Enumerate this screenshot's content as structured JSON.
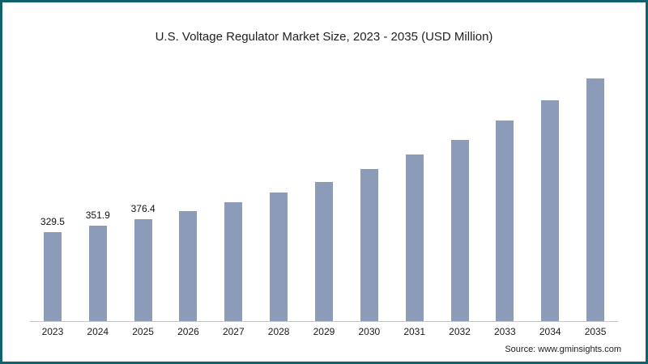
{
  "title": "U.S. Voltage Regulator Market Size, 2023 - 2035 (USD Million)",
  "source": "Source: www.gminsights.com",
  "colors": {
    "bar": "#8C9CB8",
    "border": "#11616b",
    "axis": "#c8c8c8"
  },
  "chart_data": {
    "type": "bar",
    "title": "U.S. Voltage Regulator Market Size, 2023 - 2035 (USD Million)",
    "categories": [
      "2023",
      "2024",
      "2025",
      "2026",
      "2027",
      "2028",
      "2029",
      "2030",
      "2031",
      "2032",
      "2033",
      "2034",
      "2035"
    ],
    "values": [
      329.5,
      351.9,
      376.4,
      405,
      440,
      475,
      515,
      560,
      615,
      670,
      740,
      815,
      895
    ],
    "data_labels": [
      "329.5",
      "351.9",
      "376.4",
      "",
      "",
      "",
      "",
      "",
      "",
      "",
      "",
      "",
      ""
    ],
    "xlabel": "",
    "ylabel": "",
    "ylim": [
      0,
      1000
    ],
    "grid": false,
    "legend": false,
    "legend_position": "none",
    "bar_color": "#8C9CB8"
  }
}
